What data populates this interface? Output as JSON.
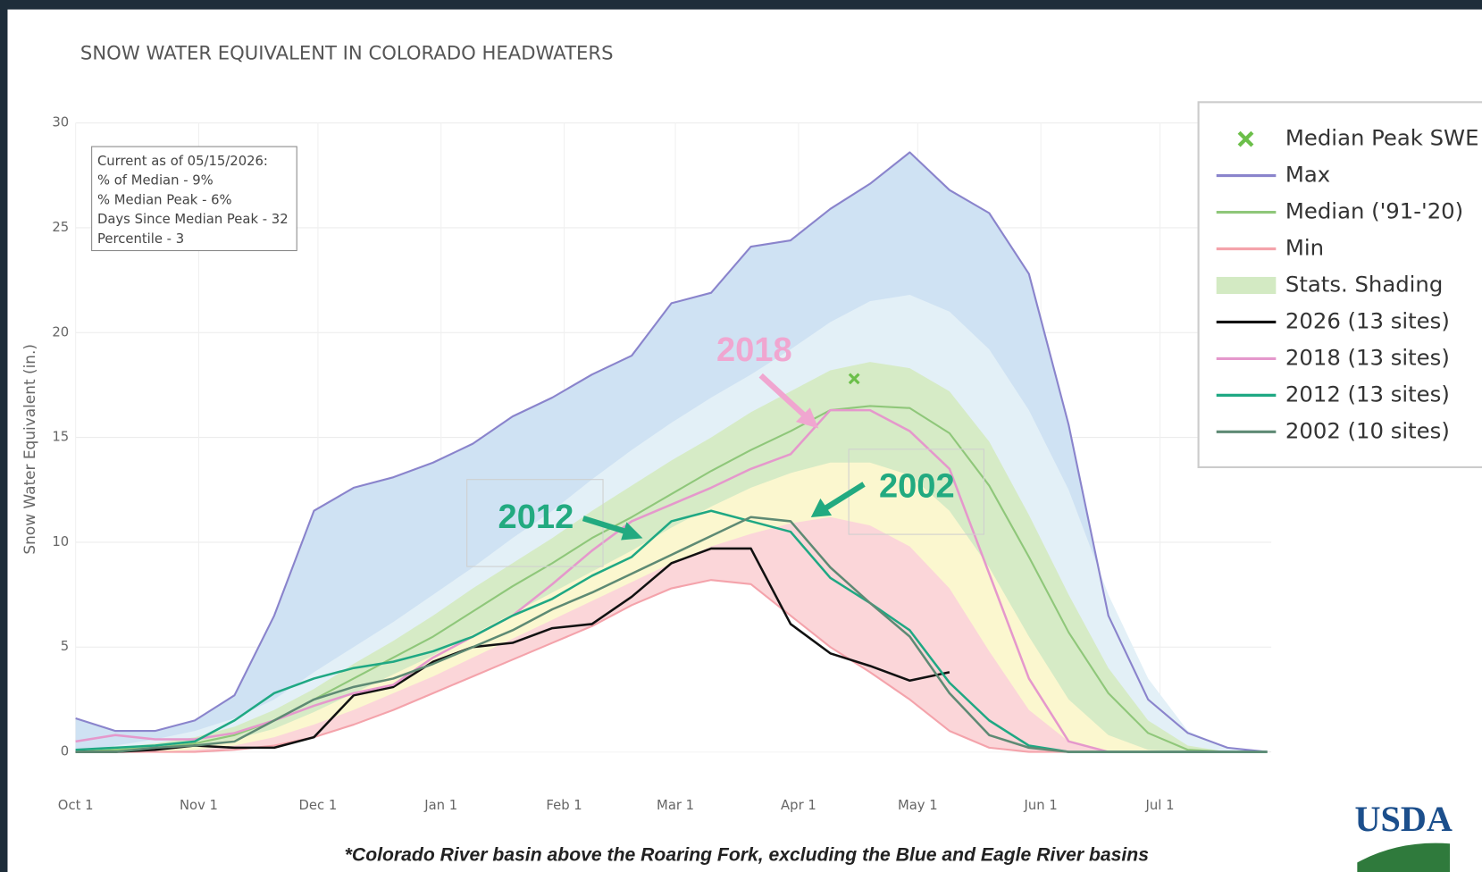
{
  "chart_data": {
    "type": "line",
    "title": "SNOW WATER EQUIVALENT IN COLORADO HEADWATERS",
    "y_label": "Snow Water Equivalent (in.)",
    "footnote": "*Colorado River basin above the Roaring Fork, excluding the Blue and Eagle River basins",
    "logo": "USDA",
    "info_box": [
      "Current as of 05/15/2026:",
      "% of Median - 9%",
      "% Median Peak - 6%",
      "Days Since Median Peak - 32",
      "Percentile - 3"
    ],
    "x": [
      0,
      10,
      20,
      30,
      40,
      50,
      60,
      70,
      80,
      90,
      100,
      110,
      120,
      130,
      140,
      150,
      160,
      170,
      180,
      190,
      200,
      210,
      220,
      230,
      240,
      250,
      260,
      270,
      280,
      290,
      300
    ],
    "xlim": [
      0,
      301
    ],
    "xticks": [
      {
        "value": 0,
        "label": "Oct 1"
      },
      {
        "value": 31,
        "label": "Nov 1"
      },
      {
        "value": 61,
        "label": "Dec 1"
      },
      {
        "value": 92,
        "label": "Jan 1"
      },
      {
        "value": 123,
        "label": "Feb 1"
      },
      {
        "value": 151,
        "label": "Mar 1"
      },
      {
        "value": 182,
        "label": "Apr 1"
      },
      {
        "value": 212,
        "label": "May 1"
      },
      {
        "value": 243,
        "label": "Jun 1"
      },
      {
        "value": 273,
        "label": "Jul 1"
      }
    ],
    "ylim": [
      0,
      30
    ],
    "yticks": [
      0,
      5,
      10,
      15,
      20,
      25,
      30
    ],
    "grid": true,
    "legend": "upper right",
    "median_peak": {
      "name": "Median Peak SWE",
      "x": 196,
      "value": 17.8,
      "color": "#6cbf4a"
    },
    "shading": {
      "name": "Stats. Shading",
      "color": "#d3eac3",
      "bands": [
        {
          "color": "#e3f0f7",
          "values": [
            0,
            0.3,
            0.6,
            1.0,
            1.6,
            2.5,
            3.8,
            5.0,
            6.2,
            7.5,
            8.8,
            10.2,
            11.5,
            13.0,
            14.4,
            15.7,
            16.9,
            18.0,
            19.2,
            20.5,
            21.5,
            21.8,
            21.0,
            19.2,
            16.3,
            12.5,
            7.5,
            3.5,
            1.0,
            0.2,
            0
          ]
        },
        {
          "color": "#d6ebc6",
          "values": [
            0,
            0.2,
            0.4,
            0.7,
            1.2,
            2.0,
            3.0,
            4.2,
            5.3,
            6.5,
            7.8,
            9.0,
            10.2,
            11.5,
            12.7,
            13.9,
            15.0,
            16.2,
            17.2,
            18.2,
            18.6,
            18.3,
            17.2,
            14.8,
            11.3,
            7.5,
            4.0,
            1.5,
            0.3,
            0,
            0
          ]
        },
        {
          "color": "#fbf7cf",
          "values": [
            0,
            0,
            0.1,
            0.3,
            0.6,
            1.1,
            1.9,
            2.8,
            3.7,
            4.6,
            5.6,
            6.6,
            7.6,
            8.6,
            9.6,
            10.7,
            11.7,
            12.6,
            13.3,
            13.8,
            13.8,
            13.2,
            11.5,
            8.8,
            5.5,
            2.5,
            0.8,
            0.1,
            0,
            0,
            0
          ]
        },
        {
          "color": "#fbd6d9",
          "values": [
            0,
            0,
            0,
            0.1,
            0.3,
            0.7,
            1.3,
            2.0,
            2.8,
            3.6,
            4.5,
            5.4,
            6.3,
            7.2,
            8.1,
            9.0,
            9.8,
            10.4,
            10.9,
            11.2,
            10.8,
            9.8,
            7.8,
            4.8,
            2.0,
            0.5,
            0,
            0,
            0,
            0,
            0
          ]
        }
      ]
    },
    "series": [
      {
        "name": "Max",
        "color": "#8a84cc",
        "fill": "#cfe2f3",
        "values": [
          1.6,
          1.0,
          1.0,
          1.5,
          2.7,
          6.5,
          11.5,
          12.6,
          13.1,
          13.8,
          14.7,
          16.0,
          16.9,
          18.0,
          18.9,
          21.4,
          21.9,
          24.1,
          24.4,
          25.9,
          27.1,
          28.6,
          26.8,
          25.7,
          22.8,
          15.6,
          6.5,
          2.5,
          0.9,
          0.2,
          0
        ]
      },
      {
        "name": "Median ('91-'20)",
        "color": "#8fc77a",
        "values": [
          0,
          0.1,
          0.2,
          0.4,
          0.8,
          1.5,
          2.5,
          3.5,
          4.5,
          5.5,
          6.7,
          7.9,
          9.0,
          10.2,
          11.2,
          12.3,
          13.4,
          14.4,
          15.3,
          16.3,
          16.5,
          16.4,
          15.2,
          12.7,
          9.3,
          5.7,
          2.8,
          0.9,
          0.1,
          0,
          0
        ]
      },
      {
        "name": "Min",
        "color": "#f4a3ab",
        "fill": "#ffffff",
        "values": [
          0,
          0,
          0,
          0,
          0.1,
          0.3,
          0.7,
          1.3,
          2.0,
          2.8,
          3.6,
          4.4,
          5.2,
          6.0,
          7.0,
          7.8,
          8.2,
          8.0,
          6.5,
          5.0,
          3.8,
          2.5,
          1.0,
          0.2,
          0,
          0,
          0,
          0,
          0,
          0,
          0
        ]
      },
      {
        "name": "2026 (13 sites)",
        "color": "#111111",
        "values": [
          0,
          0,
          0.1,
          0.3,
          0.2,
          0.2,
          0.7,
          2.7,
          3.1,
          4.3,
          5.0,
          5.2,
          5.9,
          6.1,
          7.4,
          9.0,
          9.7,
          9.7,
          6.1,
          4.7,
          4.1,
          3.4,
          3.8,
          null,
          null,
          null,
          null,
          null,
          null,
          null,
          null
        ]
      },
      {
        "name": "2018 (13 sites)",
        "color": "#e598cc",
        "values": [
          0.5,
          0.8,
          0.6,
          0.6,
          0.9,
          1.5,
          2.2,
          2.8,
          3.2,
          4.5,
          5.5,
          6.5,
          8.0,
          9.6,
          11.0,
          11.8,
          12.6,
          13.5,
          14.2,
          16.3,
          16.3,
          15.3,
          13.5,
          8.5,
          3.5,
          0.5,
          0,
          0,
          0,
          0,
          0
        ]
      },
      {
        "name": "2012 (13 sites)",
        "color": "#1fa883",
        "values": [
          0.1,
          0.2,
          0.3,
          0.5,
          1.5,
          2.8,
          3.5,
          4.0,
          4.3,
          4.8,
          5.5,
          6.5,
          7.3,
          8.4,
          9.3,
          11.0,
          11.5,
          11.0,
          10.5,
          8.3,
          7.1,
          5.8,
          3.3,
          1.5,
          0.3,
          0,
          0,
          0,
          0,
          0,
          0
        ]
      },
      {
        "name": "2002 (10 sites)",
        "color": "#5e8a74",
        "values": [
          0,
          0,
          0.2,
          0.3,
          0.5,
          1.5,
          2.5,
          3.1,
          3.5,
          4.2,
          5.0,
          5.8,
          6.8,
          7.6,
          8.5,
          9.4,
          10.3,
          11.2,
          11.0,
          8.8,
          7.1,
          5.5,
          2.8,
          0.8,
          0.2,
          0,
          0,
          0,
          0,
          0,
          0
        ]
      }
    ],
    "annotations": [
      {
        "text": "2018",
        "color": "#f0a6d0"
      },
      {
        "text": "2012",
        "color": "#22aa80"
      },
      {
        "text": "2002",
        "color": "#22aa80"
      }
    ]
  }
}
